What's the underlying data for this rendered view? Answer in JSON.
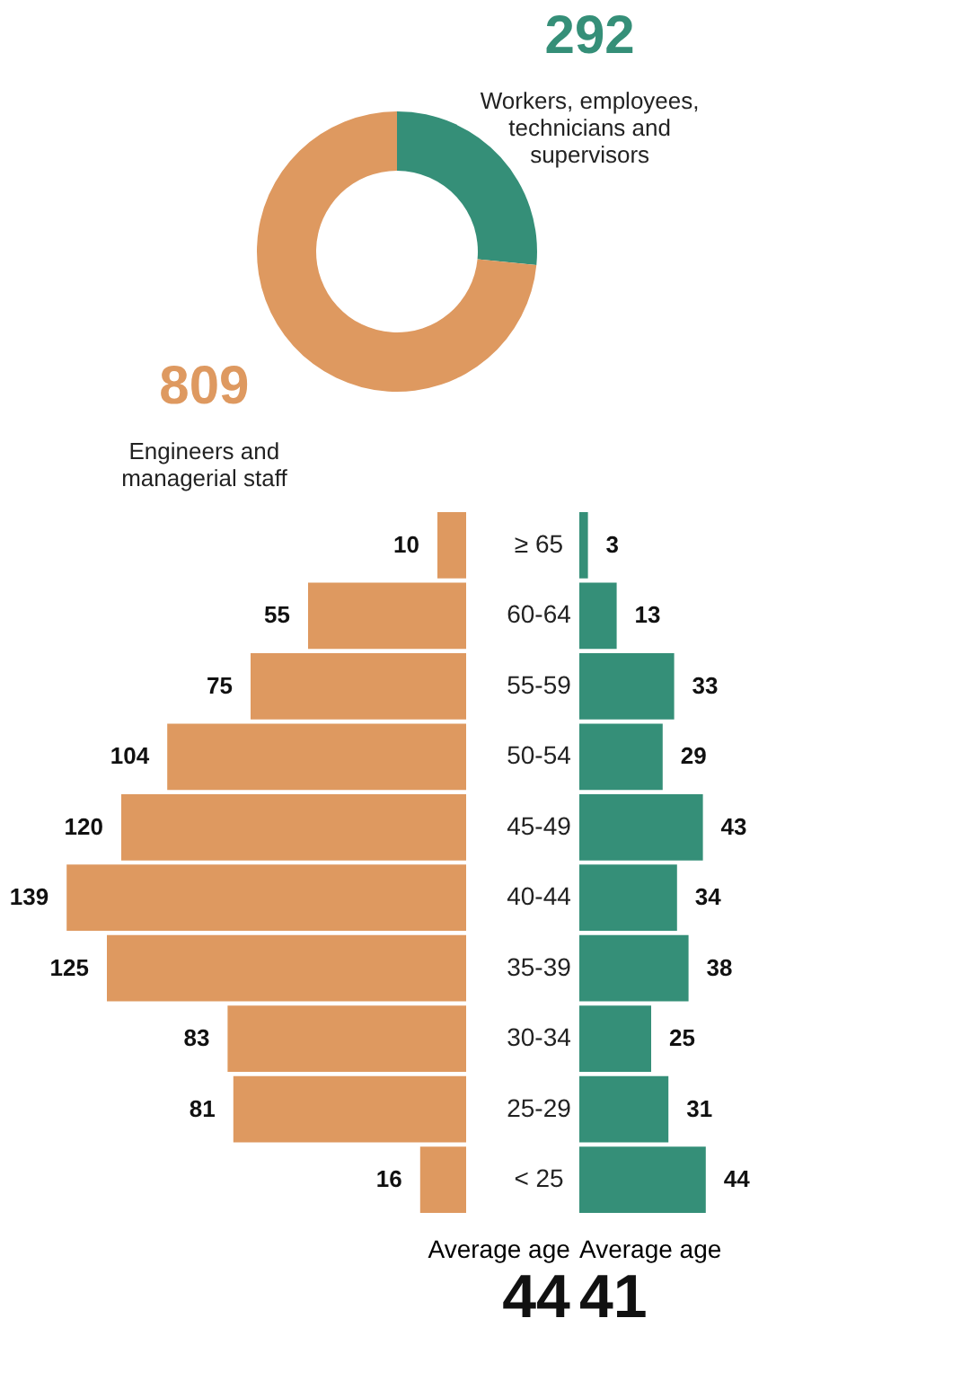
{
  "chart_data": [
    {
      "type": "donut",
      "categories": [
        "Workers, employees, technicians and supervisors",
        "Engineers and managerial staff"
      ],
      "values": [
        292,
        809
      ],
      "colors": [
        "#358f78",
        "#de9960"
      ],
      "data_labels": true,
      "legend": false
    },
    {
      "type": "bar",
      "orientation": "horizontal",
      "categories": [
        "≥ 65",
        "60-64",
        "55-59",
        "50-54",
        "45-49",
        "40-44",
        "35-39",
        "30-34",
        "25-29",
        "< 25"
      ],
      "values": [
        10,
        55,
        75,
        104,
        120,
        139,
        125,
        83,
        81,
        16
      ],
      "color": "#de9960",
      "data_labels": true,
      "tick_labels": "y",
      "annotations": [
        "Average age",
        "44"
      ]
    },
    {
      "type": "bar",
      "orientation": "horizontal",
      "categories": [
        null,
        null,
        null,
        null,
        null,
        null,
        null,
        null,
        null,
        null
      ],
      "values": [
        3,
        13,
        33,
        29,
        43,
        34,
        38,
        25,
        31,
        44
      ],
      "color": "#358f78",
      "data_labels": true,
      "tick_labels": false,
      "annotations": [
        "Average age",
        "41"
      ]
    }
  ]
}
